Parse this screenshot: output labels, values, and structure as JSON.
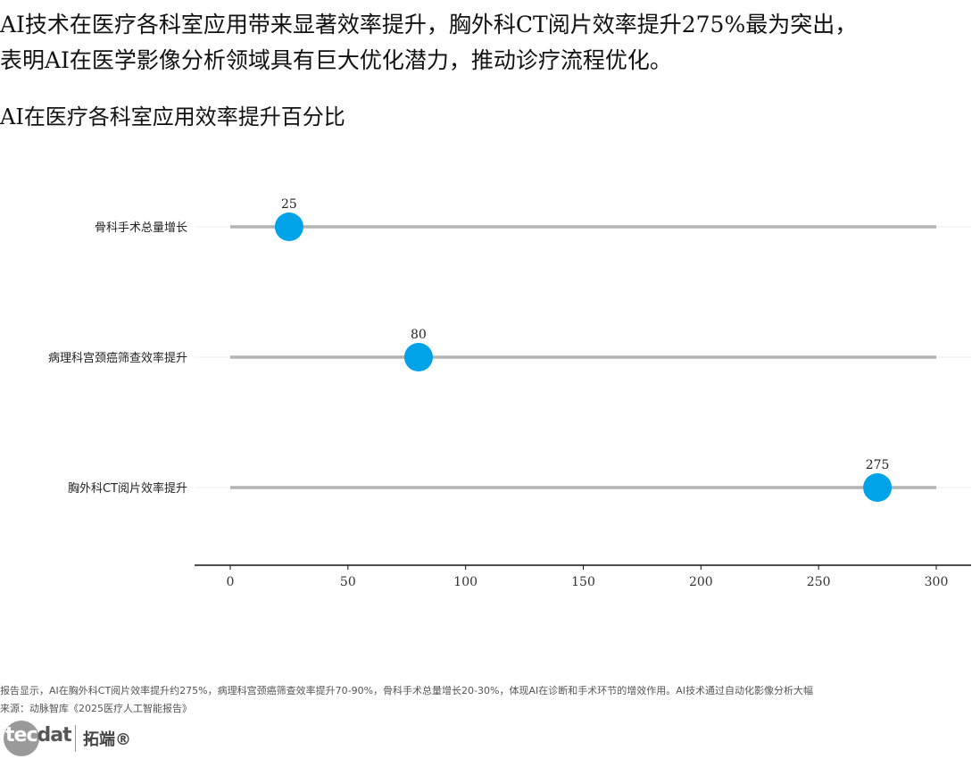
{
  "headline": {
    "line1": "AI技术在医疗各科室应用带来显著效率提升，胸外科CT阅片效率提升275%最为突出，",
    "line2": "表明AI在医学影像分析领域具有巨大优化潜力，推动诊疗流程优化。"
  },
  "chart_data": {
    "type": "lollipop",
    "title": "AI在医疗各科室应用效率提升百分比",
    "xlabel": "",
    "ylabel": "",
    "categories": [
      "骨科手术总量增长",
      "病理科宫颈癌筛查效率提升",
      "胸外科CT阅片效率提升"
    ],
    "values": [
      25,
      80,
      275
    ],
    "xlim": [
      0,
      300
    ],
    "xticks": [
      0,
      50,
      100,
      150,
      200,
      250,
      300
    ],
    "data_labels": [
      "25",
      "80",
      "275"
    ],
    "grid": true,
    "legend": "none",
    "colors": {
      "marker": "#00a2e8",
      "stem": "#b3b3b3",
      "grid": "#ececec",
      "axis": "#111111"
    }
  },
  "footnote": {
    "note": "报告显示，AI在胸外科CT阅片效率提升约275%，病理科宫颈癌筛查效率提升70-90%，骨科手术总量增长20-30%，体现AI在诊断和手术环节的增效作用。AI技术通过自动化影像分析大幅",
    "source": "来源：动脉智库《2025医疗人工智能报告》"
  },
  "logo": {
    "brand_part1": "tec",
    "brand_part2": "dat",
    "brand_cn": "拓端®"
  }
}
